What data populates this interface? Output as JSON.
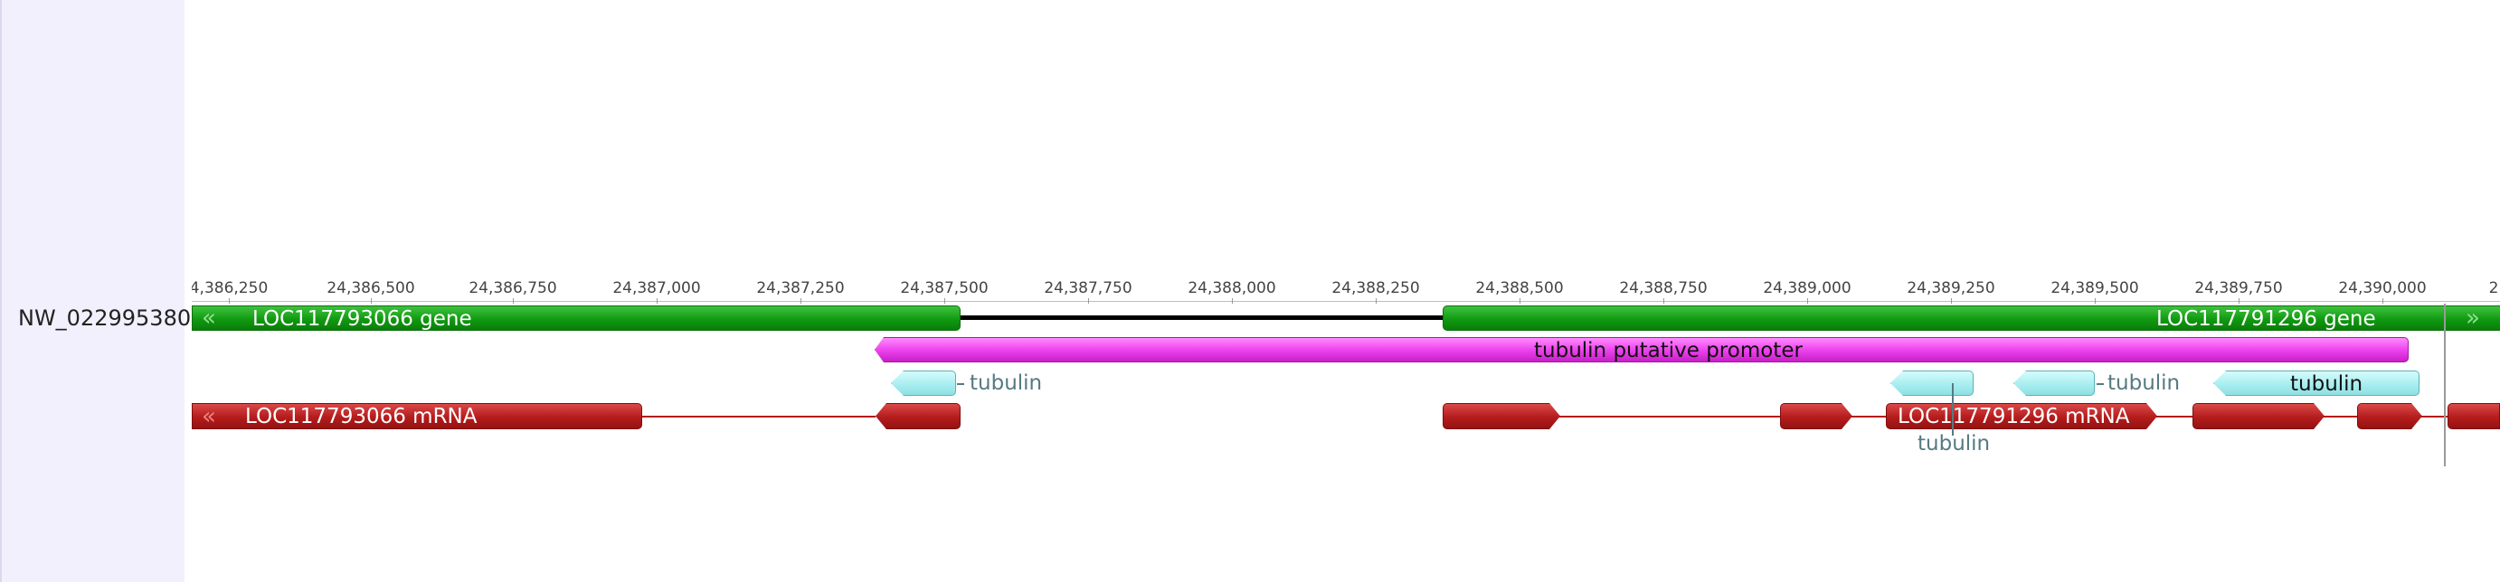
{
  "sequence_name": "NW_022995380",
  "ruler": {
    "ticks": [
      "4,386,250",
      "24,386,500",
      "24,386,750",
      "24,387,000",
      "24,387,250",
      "24,387,500",
      "24,387,750",
      "24,388,000",
      "24,388,250",
      "24,388,500",
      "24,388,750",
      "24,389,000",
      "24,389,250",
      "24,389,500",
      "24,389,750",
      "24,390,000",
      "2"
    ]
  },
  "features": {
    "gene_left": "LOC117793066 gene",
    "gene_right": "LOC117791296 gene",
    "promoter": "tubulin putative promoter",
    "mrna_left": "LOC117793066 mRNA",
    "mrna_right": "LOC117791296 mRNA",
    "tubulin_1": "tubulin",
    "tubulin_2": "tubulin",
    "tubulin_3": "tubulin",
    "tubulin_4": "tubulin"
  },
  "colors": {
    "gene": "#119a11",
    "promoter": "#ee44ee",
    "mrna": "#b51c1c",
    "tubulin": "#a9eef0",
    "panel": "#f1f0fc"
  }
}
